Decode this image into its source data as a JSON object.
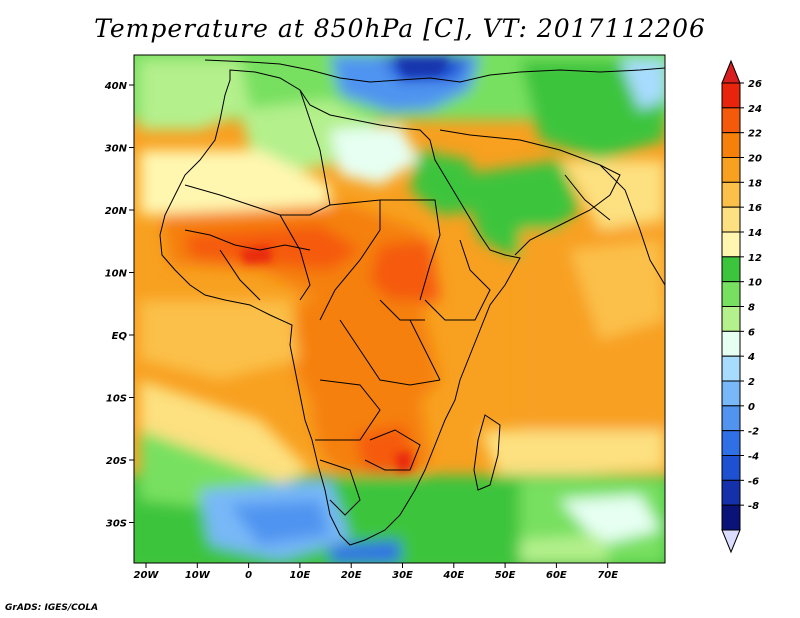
{
  "title": "Temperature at 850hPa [C], VT: 2017112206",
  "credit": "GrADS: IGES/COLA",
  "map": {
    "lon_ticks": [
      "20W",
      "10W",
      "0",
      "10E",
      "20E",
      "30E",
      "40E",
      "50E",
      "60E",
      "70E"
    ],
    "lat_ticks": [
      "40N",
      "30N",
      "20N",
      "10N",
      "EQ",
      "10S",
      "20S",
      "30S"
    ]
  },
  "colorbar": {
    "labels": [
      "26",
      "24",
      "22",
      "20",
      "18",
      "16",
      "14",
      "12",
      "10",
      "8",
      "6",
      "4",
      "2",
      "0",
      "-2",
      "-4",
      "-6",
      "-8"
    ],
    "colors": [
      "#e8250c",
      "#f55a0c",
      "#f5800a",
      "#f8a020",
      "#fbc04a",
      "#fde080",
      "#fff7b0",
      "#3cc43c",
      "#78e060",
      "#b4f08c",
      "#e6fff2",
      "#a8dcff",
      "#78b8f8",
      "#5094f0",
      "#3070e6",
      "#1e50d2",
      "#1430aa",
      "#0a1478"
    ],
    "top_arrow_color": "#d81e1e",
    "bottom_arrow_color": "#dcdcff"
  }
}
